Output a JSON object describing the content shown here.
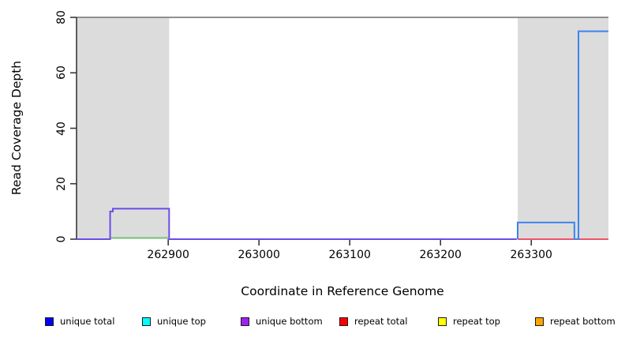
{
  "chart_data": {
    "type": "line",
    "subtype": "step-coverage-plot",
    "title": "",
    "xlabel": "Coordinate in Reference Genome",
    "ylabel": "Read Coverage Depth",
    "xlim": [
      262799,
      263385
    ],
    "ylim": [
      0,
      80
    ],
    "x_ticks": [
      262900,
      263000,
      263100,
      263200,
      263300
    ],
    "y_ticks": [
      0,
      20,
      40,
      60,
      80
    ],
    "grid": false,
    "top_rule_y": 80,
    "top_rule_color": "#8f8f8f",
    "axis_color": "#383838",
    "shaded_regions": [
      {
        "x0": 262799,
        "x1": 262901,
        "color": "#dcdcdc"
      },
      {
        "x0": 263285,
        "x1": 263385,
        "color": "#dcdcdc"
      }
    ],
    "series": [
      {
        "name": "unique-top-baseline-segment",
        "display_color": "#7cc57c",
        "points": [
          [
            262837,
            0.45
          ],
          [
            262900,
            0.45
          ]
        ]
      },
      {
        "name": "unique-bottom-step",
        "display_color": "#6c4be8",
        "points": [
          [
            262799,
            0
          ],
          [
            262836,
            0
          ],
          [
            262836,
            10
          ],
          [
            262839,
            10
          ],
          [
            262839,
            11
          ],
          [
            262901,
            11
          ],
          [
            262901,
            0
          ],
          [
            263284,
            0
          ]
        ]
      },
      {
        "name": "repeat-total-baseline",
        "display_color": "#ed5568",
        "points": [
          [
            263285,
            0
          ],
          [
            263385,
            0
          ]
        ]
      },
      {
        "name": "unique-total-steps",
        "display_color": "#3e82f0",
        "points": [
          [
            263285,
            0
          ],
          [
            263285,
            6
          ],
          [
            263347.5,
            6
          ],
          [
            263347.5,
            0
          ],
          [
            263352,
            0
          ],
          [
            263352,
            75
          ],
          [
            263385,
            75
          ]
        ]
      }
    ],
    "legend_position": "bottom"
  },
  "legend": {
    "items": [
      {
        "label": "unique total",
        "color": "#0000ff"
      },
      {
        "label": "unique top",
        "color": "#00ffff"
      },
      {
        "label": "unique bottom",
        "color": "#a020f0"
      },
      {
        "label": "repeat total",
        "color": "#ff0000"
      },
      {
        "label": "repeat top",
        "color": "#ffff00"
      },
      {
        "label": "repeat bottom",
        "color": "#ffa500"
      }
    ]
  }
}
